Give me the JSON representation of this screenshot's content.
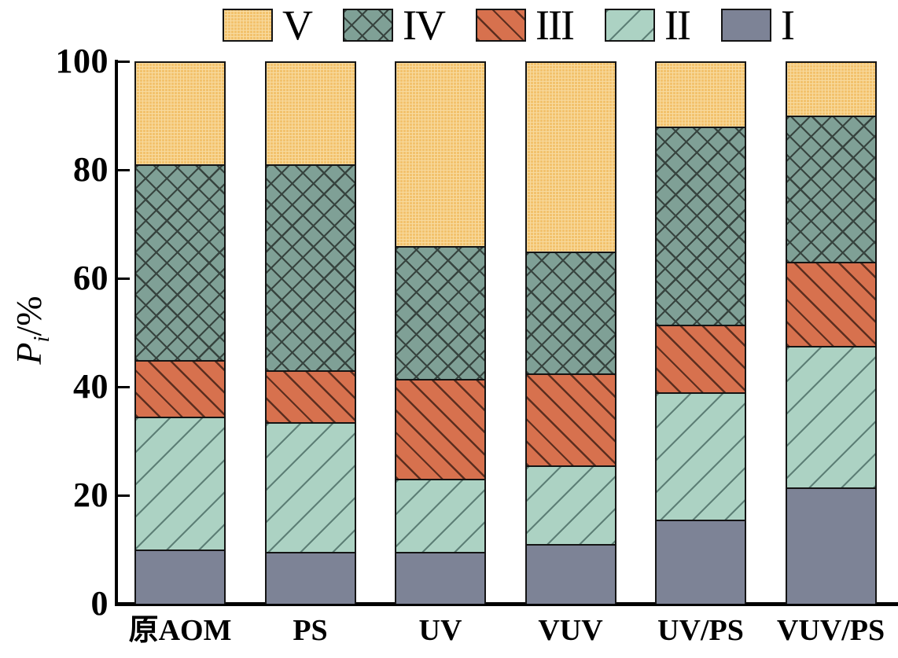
{
  "chart_data": {
    "type": "bar",
    "stacked": true,
    "title": "",
    "xlabel": "",
    "ylabel": "Pi/%",
    "ylabel_parts": {
      "main": "P",
      "sub": "i",
      "rest": "/%"
    },
    "ylim": [
      0,
      100
    ],
    "yticks": [
      0,
      20,
      40,
      60,
      80,
      100
    ],
    "grid": false,
    "legend": {
      "position": "top",
      "order": [
        "V",
        "IV",
        "III",
        "II",
        "I"
      ]
    },
    "categories": [
      "原AOM",
      "PS",
      "UV",
      "VUV",
      "UV/PS",
      "VUV/PS"
    ],
    "series": [
      {
        "name": "I",
        "pattern": "solid",
        "color": "#7D8396",
        "pattern_color": "",
        "values": [
          10,
          9.5,
          9.5,
          11,
          15.5,
          21.5
        ]
      },
      {
        "name": "II",
        "pattern": "diagonal-up",
        "color": "#ACD2C3",
        "pattern_color": "#5D7F76",
        "values": [
          24.5,
          24,
          13.5,
          14.5,
          23.5,
          26
        ]
      },
      {
        "name": "III",
        "pattern": "diagonal-down",
        "color": "#D7714E",
        "pattern_color": "#5C2E1F",
        "values": [
          10.5,
          9.5,
          18.5,
          17,
          12.5,
          15.5
        ]
      },
      {
        "name": "IV",
        "pattern": "crosshatch",
        "color": "#7FA096",
        "pattern_color": "#37443F",
        "values": [
          36,
          38,
          24.5,
          22.5,
          36.5,
          27
        ]
      },
      {
        "name": "V",
        "pattern": "fine-grid",
        "color": "#F2C26D",
        "pattern_color": "#F8DA9E",
        "values": [
          19,
          19,
          34,
          35,
          12,
          10
        ]
      }
    ]
  }
}
